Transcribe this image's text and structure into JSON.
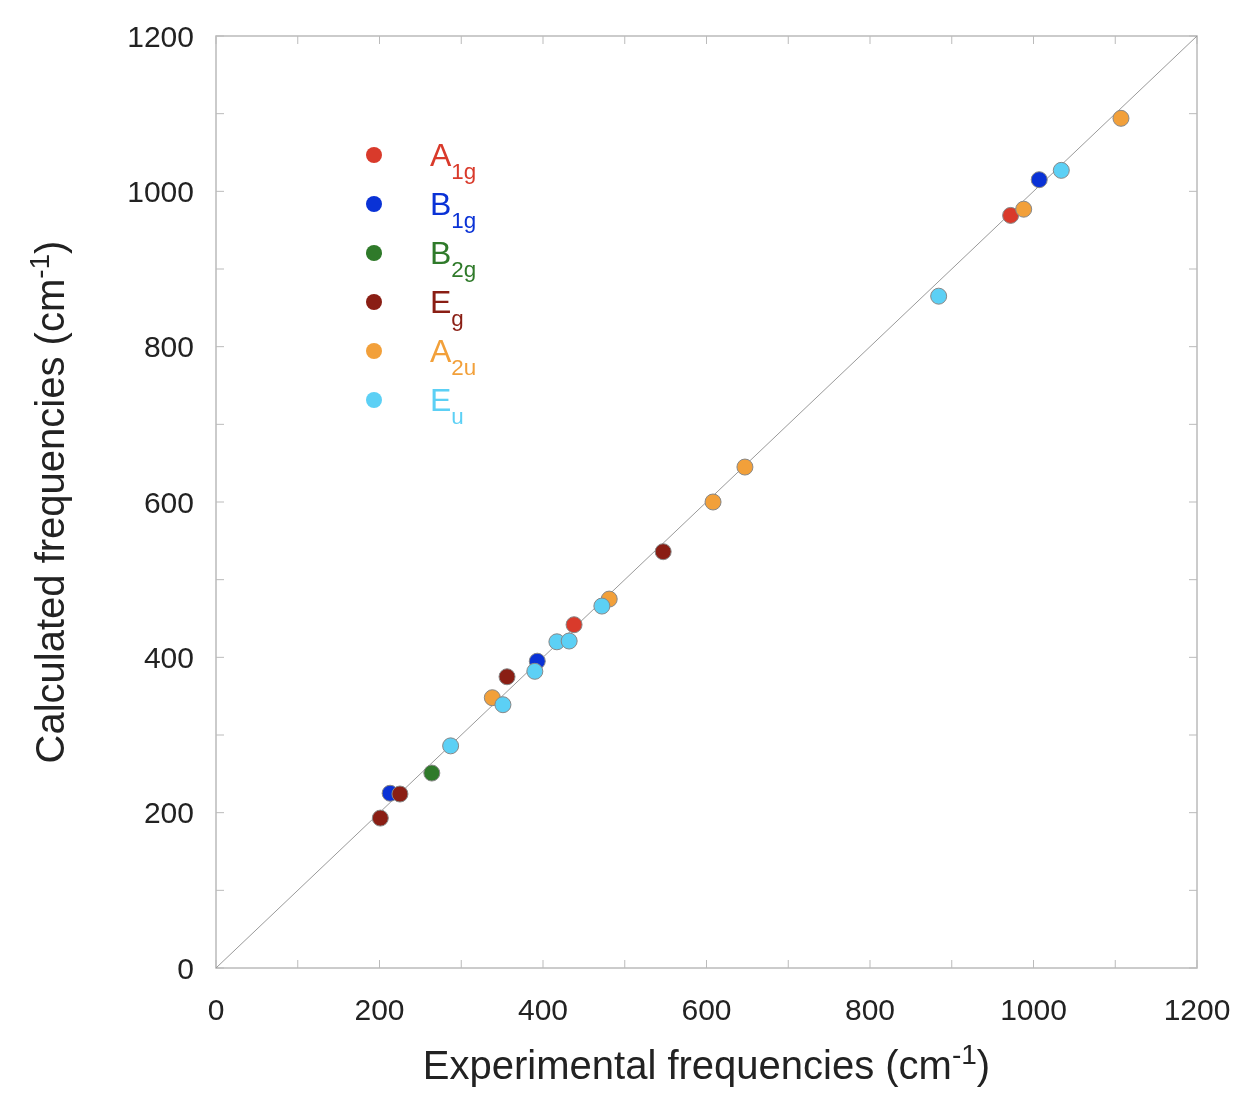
{
  "chart_data": {
    "type": "scatter",
    "xlabel": "Experimental frequencies (cm$^{-1}$)",
    "ylabel": "Calculated frequencies (cm$^{-1}$)",
    "xlim": [
      0,
      1200
    ],
    "ylim": [
      0,
      1200
    ],
    "xticks": [
      0,
      {
        "value": 100,
        "label": null
      },
      200,
      {
        "value": 300,
        "label": null
      },
      400,
      {
        "value": 500,
        "label": null
      },
      600,
      {
        "value": 700,
        "label": null
      },
      800,
      {
        "value": 900,
        "label": null
      },
      1000,
      {
        "value": 1100,
        "label": null
      },
      1200
    ],
    "yticks": [
      0,
      {
        "value": 100,
        "label": null
      },
      200,
      {
        "value": 300,
        "label": null
      },
      400,
      {
        "value": 500,
        "label": null
      },
      600,
      {
        "value": 700,
        "label": null
      },
      800,
      {
        "value": 900,
        "label": null
      },
      1000,
      {
        "value": 1100,
        "label": null
      },
      1200
    ],
    "grid": false,
    "legend": "top left",
    "marker": "circle",
    "series": [
      {
        "type": "line",
        "color": "#999999",
        "x": [
          0,
          1200
        ],
        "values": [
          0,
          1200
        ],
        "marker": "none"
      },
      {
        "name": "A$_{1g}$",
        "color": "#d93a2b",
        "x": [
          438,
          972
        ],
        "values": [
          442,
          969
        ]
      },
      {
        "name": "B$_{1g}$",
        "color": "#0a32d6",
        "x": [
          213,
          393,
          1007
        ],
        "values": [
          225,
          395,
          1015
        ]
      },
      {
        "name": "B$_{2g}$",
        "color": "#2f7a2a",
        "x": [
          264
        ],
        "values": [
          251
        ]
      },
      {
        "name": "E$_{g}$",
        "color": "#8a1e14",
        "x": [
          201,
          225,
          356,
          547
        ],
        "values": [
          193,
          224,
          375,
          536
        ]
      },
      {
        "name": "A$_{2u}$",
        "color": "#f2a03a",
        "x": [
          338,
          481,
          608,
          647,
          988,
          1107
        ],
        "values": [
          348,
          475,
          600,
          645,
          977,
          1094
        ]
      },
      {
        "name": "E$_{u}$",
        "color": "#5cd0f5",
        "x": [
          287,
          351,
          390,
          417,
          432,
          472,
          884,
          1034
        ],
        "values": [
          286,
          339,
          382,
          420,
          421,
          466,
          865,
          1027
        ]
      }
    ]
  }
}
